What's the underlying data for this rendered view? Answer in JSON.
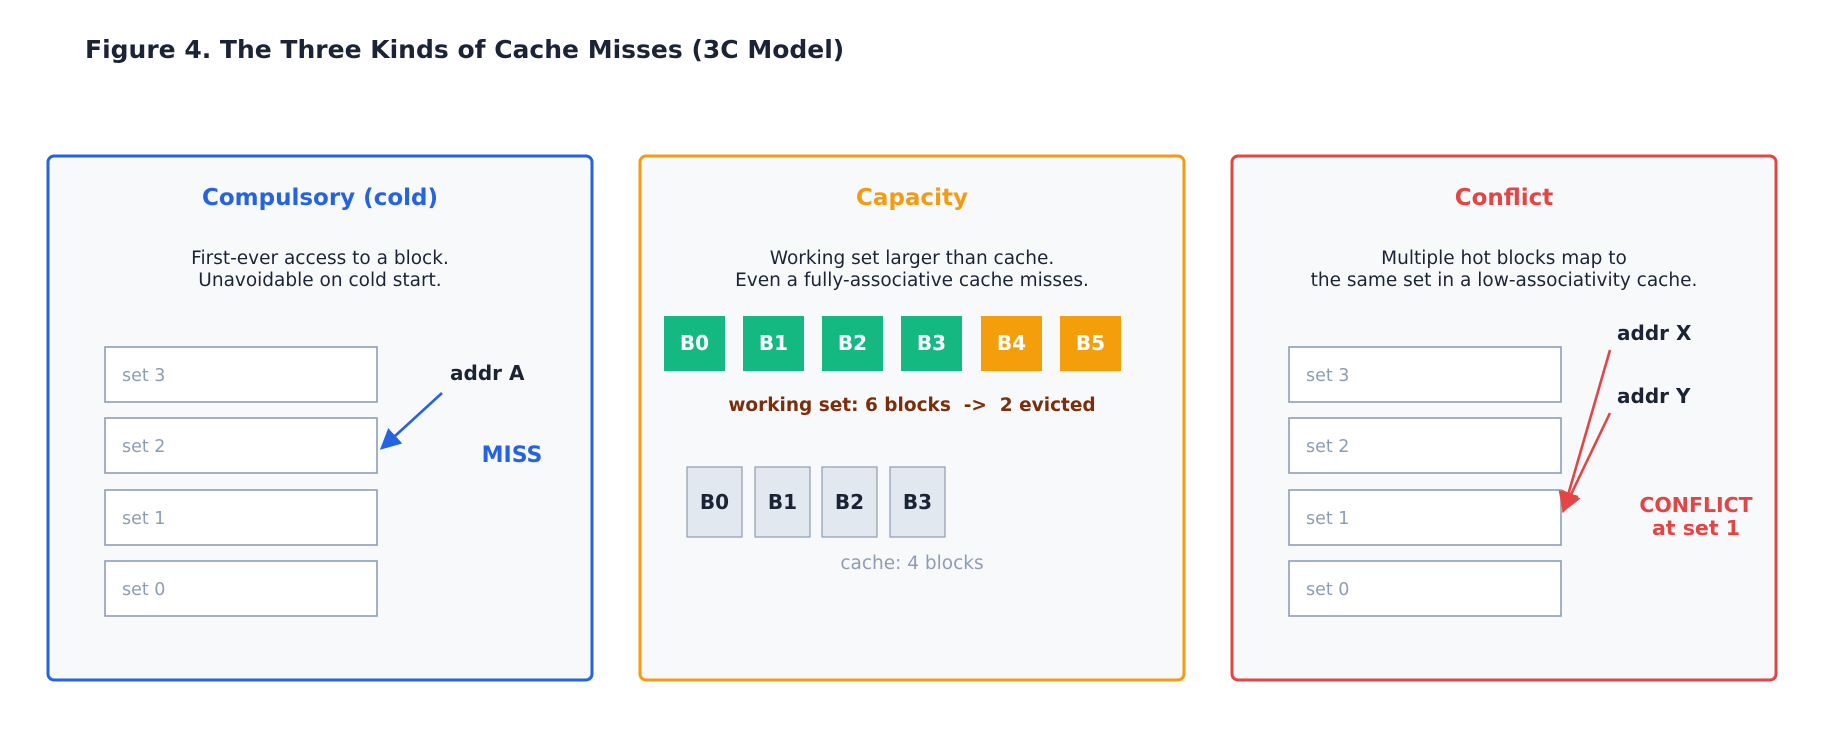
{
  "figure_title": "Figure 4. The Three Kinds of Cache Misses (3C Model)",
  "colors": {
    "compulsory": "#2563e0",
    "capacity": "#f29b13",
    "conflict": "#e34545",
    "block_fit": "#14b982",
    "block_evicted": "#f59e0b"
  },
  "compulsory": {
    "title": "Compulsory (cold)",
    "desc_line1": "First-ever access to a block.",
    "desc_line2": "Unavoidable on cold start.",
    "sets": [
      "set 3",
      "set 2",
      "set 1",
      "set 0"
    ],
    "addr": "addr A",
    "miss": "MISS"
  },
  "capacity": {
    "title": "Capacity",
    "desc_line1": "Working set larger than cache.",
    "desc_line2": "Even a fully-associative cache misses.",
    "working_blocks": [
      "B0",
      "B1",
      "B2",
      "B3",
      "B4",
      "B5"
    ],
    "working_set_label": "working set: 6 blocks  ->  2 evicted",
    "cache_blocks": [
      "B0",
      "B1",
      "B2",
      "B3"
    ],
    "cache_label": "cache: 4 blocks"
  },
  "conflict": {
    "title": "Conflict",
    "desc_line1": "Multiple hot blocks map to",
    "desc_line2": "the same set in a low-associativity cache.",
    "sets": [
      "set 3",
      "set 2",
      "set 1",
      "set 0"
    ],
    "addr_x": "addr X",
    "addr_y": "addr Y",
    "conflict_line1": "CONFLICT",
    "conflict_line2": "at set 1"
  }
}
